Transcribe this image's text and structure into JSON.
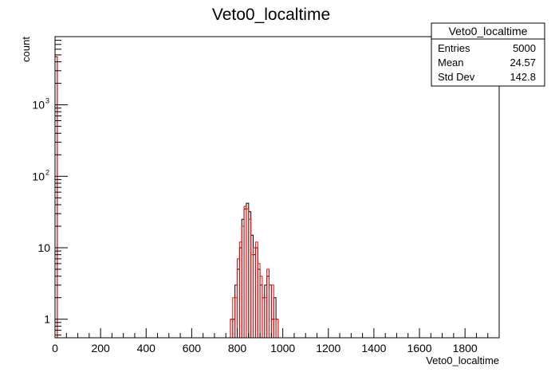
{
  "chart_data": {
    "type": "histogram",
    "title": "Veto0_localtime",
    "xlabel": "Veto0_localtime",
    "ylabel": "count",
    "xlim": [
      0,
      1950
    ],
    "ylim": [
      0.55,
      9000
    ],
    "log_y": true,
    "grid": false,
    "x_ticks": [
      "0",
      "200",
      "400",
      "600",
      "800",
      "1000",
      "1200",
      "1400",
      "1600",
      "1800"
    ],
    "y_ticks": [
      {
        "base": "1",
        "exp": ""
      },
      {
        "base": "10",
        "exp": ""
      },
      {
        "base": "10",
        "exp": "2"
      },
      {
        "base": "10",
        "exp": "3"
      }
    ],
    "stats_box": {
      "title": "Veto0_localtime",
      "placement": "top-right",
      "rows": [
        {
          "label": "Entries",
          "value": "5000"
        },
        {
          "label": "Mean",
          "value": "24.57"
        },
        {
          "label": "Std Dev",
          "value": "142.8"
        }
      ]
    },
    "series": [
      {
        "color": "#000000",
        "bin_width": 10,
        "bins": [
          {
            "x": 0,
            "y": 4700
          },
          {
            "x": 770,
            "y": 1
          },
          {
            "x": 780,
            "y": 1
          },
          {
            "x": 790,
            "y": 3
          },
          {
            "x": 800,
            "y": 5
          },
          {
            "x": 810,
            "y": 10
          },
          {
            "x": 820,
            "y": 25
          },
          {
            "x": 830,
            "y": 35
          },
          {
            "x": 840,
            "y": 42
          },
          {
            "x": 850,
            "y": 32
          },
          {
            "x": 860,
            "y": 15
          },
          {
            "x": 870,
            "y": 8
          },
          {
            "x": 880,
            "y": 10
          },
          {
            "x": 890,
            "y": 5
          },
          {
            "x": 900,
            "y": 3
          },
          {
            "x": 910,
            "y": 2
          },
          {
            "x": 920,
            "y": 3
          },
          {
            "x": 930,
            "y": 4
          },
          {
            "x": 940,
            "y": 3
          },
          {
            "x": 950,
            "y": 1
          },
          {
            "x": 960,
            "y": 2
          },
          {
            "x": 970,
            "y": 1
          }
        ]
      },
      {
        "color": "#ff0000",
        "bin_width": 10,
        "bins": [
          {
            "x": 0,
            "y": 4700
          },
          {
            "x": 770,
            "y": 1
          },
          {
            "x": 780,
            "y": 2
          },
          {
            "x": 790,
            "y": 2
          },
          {
            "x": 800,
            "y": 7
          },
          {
            "x": 810,
            "y": 12
          },
          {
            "x": 820,
            "y": 20
          },
          {
            "x": 830,
            "y": 38
          },
          {
            "x": 840,
            "y": 35
          },
          {
            "x": 850,
            "y": 25
          },
          {
            "x": 860,
            "y": 8
          },
          {
            "x": 870,
            "y": 10
          },
          {
            "x": 880,
            "y": 12
          },
          {
            "x": 890,
            "y": 6
          },
          {
            "x": 900,
            "y": 4
          },
          {
            "x": 910,
            "y": 2
          },
          {
            "x": 920,
            "y": 2
          },
          {
            "x": 930,
            "y": 5
          },
          {
            "x": 940,
            "y": 3
          },
          {
            "x": 950,
            "y": 3
          },
          {
            "x": 960,
            "y": 1
          },
          {
            "x": 970,
            "y": 1
          }
        ]
      }
    ]
  }
}
